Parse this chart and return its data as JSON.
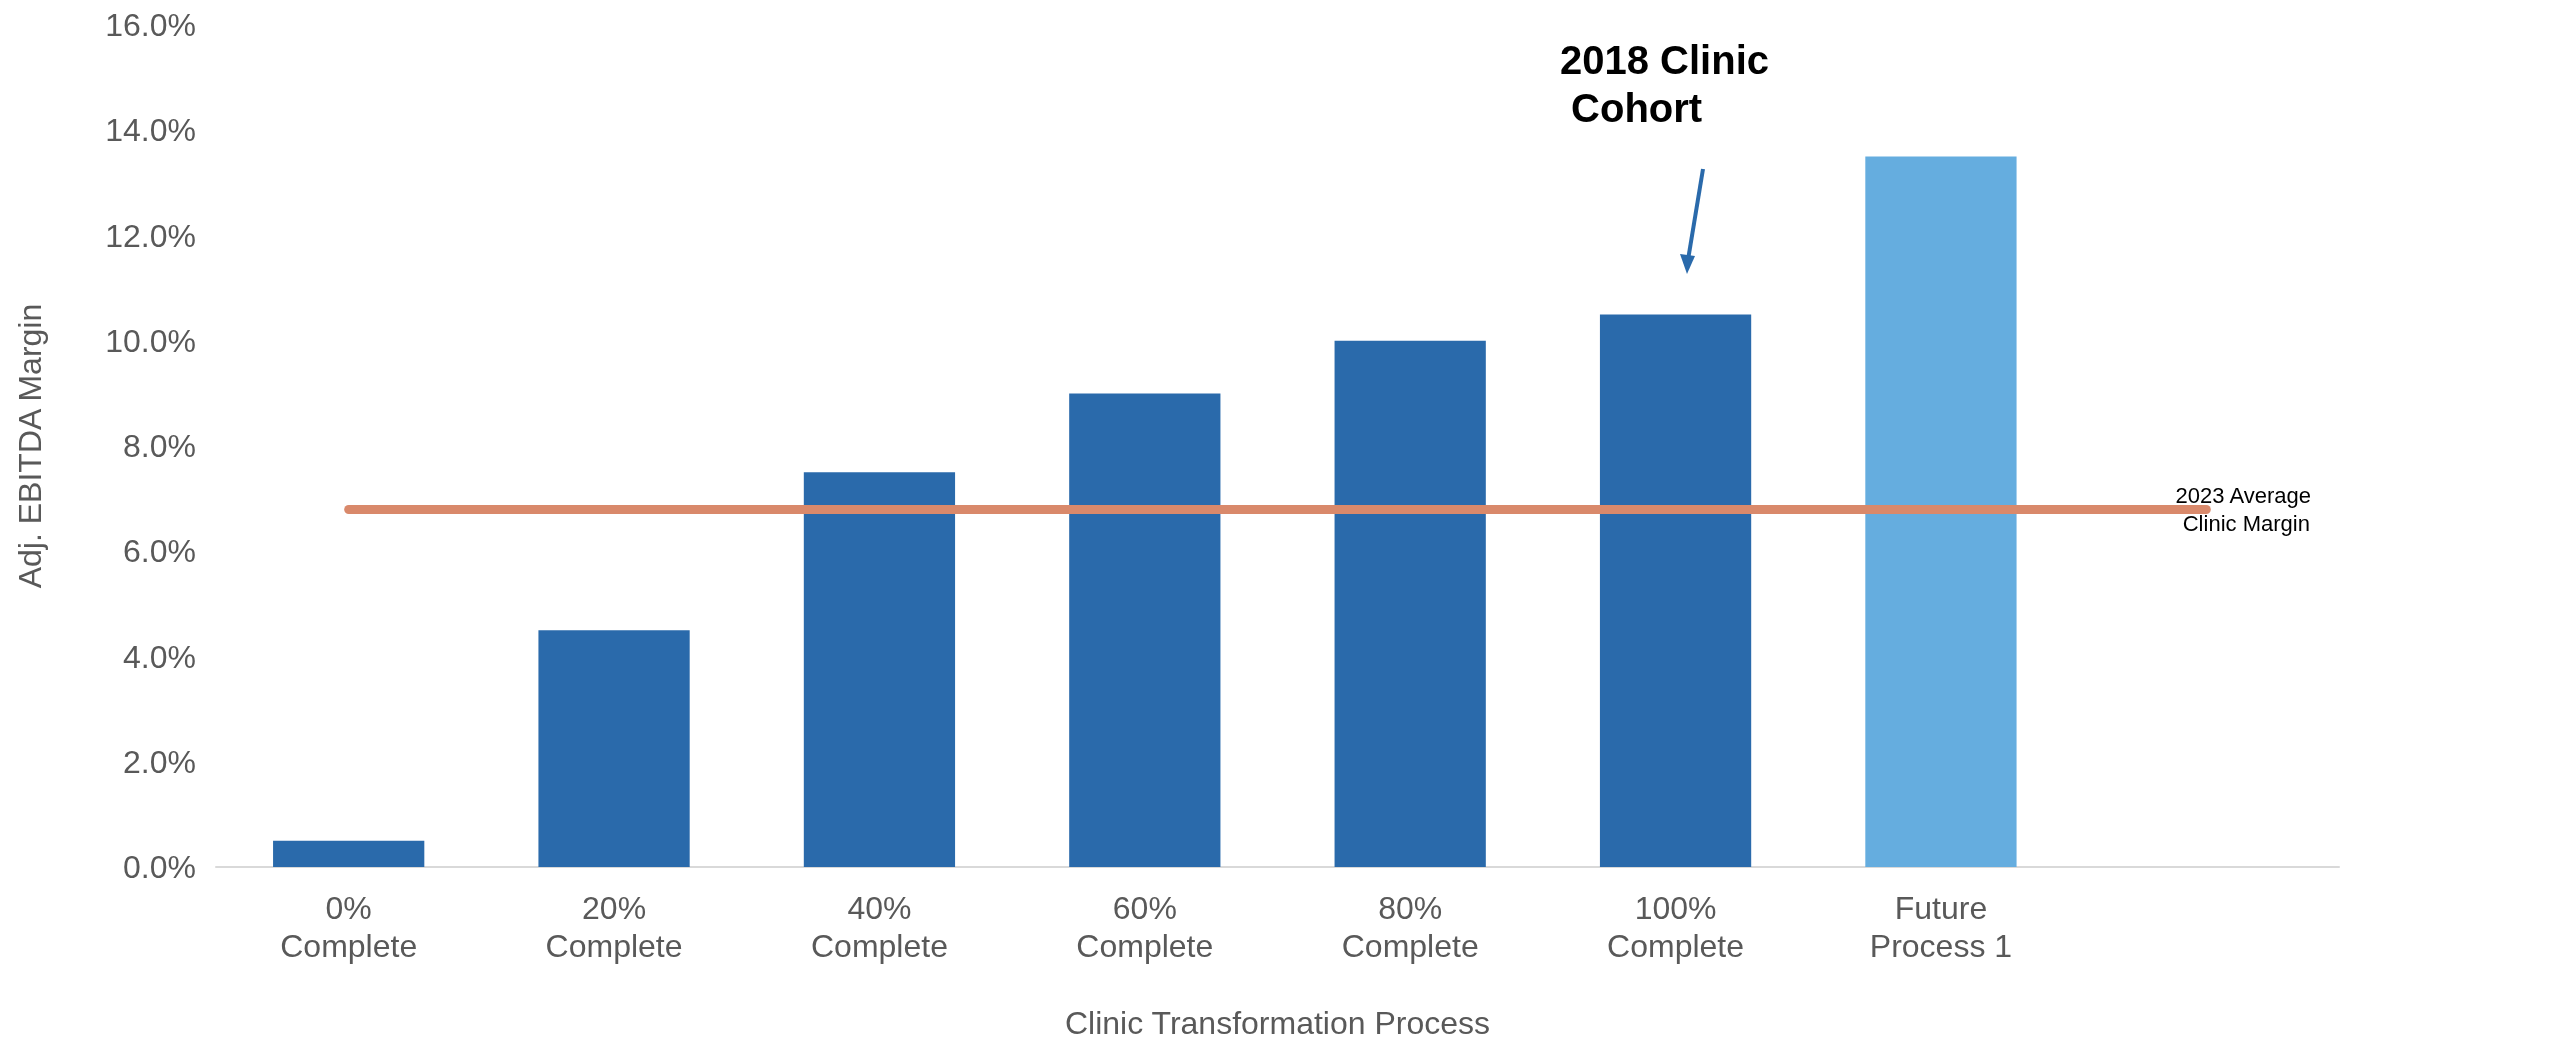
{
  "chart_data": {
    "type": "bar",
    "xlabel": "Clinic Transformation Process",
    "ylabel": "Adj. EBITDA Margin",
    "categories": [
      "0%\nComplete",
      "20%\nComplete",
      "40%\nComplete",
      "60%\nComplete",
      "80%\nComplete",
      "100%\nComplete",
      "Future\nProcess 1",
      null
    ],
    "values": [
      0.5,
      4.5,
      7.5,
      9.0,
      10.0,
      10.5,
      13.5,
      null
    ],
    "colors": [
      "#2a6aab",
      "#2a6aab",
      "#2a6aab",
      "#2a6aab",
      "#2a6aab",
      "#2a6aab",
      "#65addf",
      null
    ],
    "ylim": [
      0,
      16
    ],
    "yticks": [
      {
        "value": 0,
        "label": "0.0%"
      },
      {
        "value": 2,
        "label": "2.0%"
      },
      {
        "value": 4,
        "label": "4.0%"
      },
      {
        "value": 6,
        "label": "6.0%"
      },
      {
        "value": 8,
        "label": "8.0%"
      },
      {
        "value": 10,
        "label": "10.0%"
      },
      {
        "value": 12,
        "label": "12.0%"
      },
      {
        "value": 14,
        "label": "14.0%"
      },
      {
        "value": 16,
        "label": "16.0%"
      }
    ],
    "ref_lines": [
      {
        "axis": "y",
        "value": 6.8,
        "label": "2023 Average Clinic Margin",
        "color": "#d9896b"
      }
    ],
    "annotations": [
      "2018 Clinic Cohort"
    ],
    "grid": false
  }
}
